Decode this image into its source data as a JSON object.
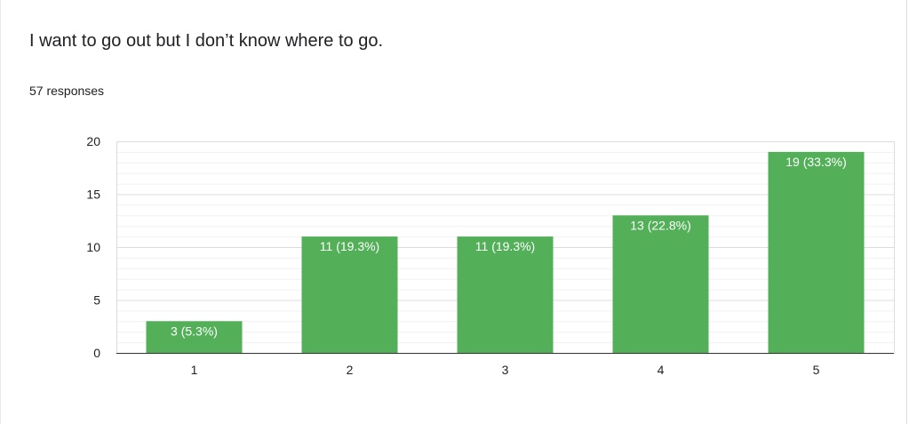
{
  "question": {
    "title": "I want to go out but I don’t know where to go.",
    "response_count": "57 responses"
  },
  "colors": {
    "bar": "#53b058",
    "bar_label": "#ffffff",
    "grid": "#e6e6e6",
    "axis": "#333333",
    "tick_label": "#222222"
  },
  "chart_data": {
    "type": "bar",
    "categories": [
      "1",
      "2",
      "3",
      "4",
      "5"
    ],
    "values": [
      3,
      11,
      11,
      13,
      19
    ],
    "data_labels": [
      "3 (5.3%)",
      "11 (19.3%)",
      "11 (19.3%)",
      "13 (22.8%)",
      "19 (33.3%)"
    ],
    "ylim": [
      0,
      20
    ],
    "yticks": [
      0,
      5,
      10,
      15,
      20
    ],
    "grid": true,
    "legend": "none"
  }
}
